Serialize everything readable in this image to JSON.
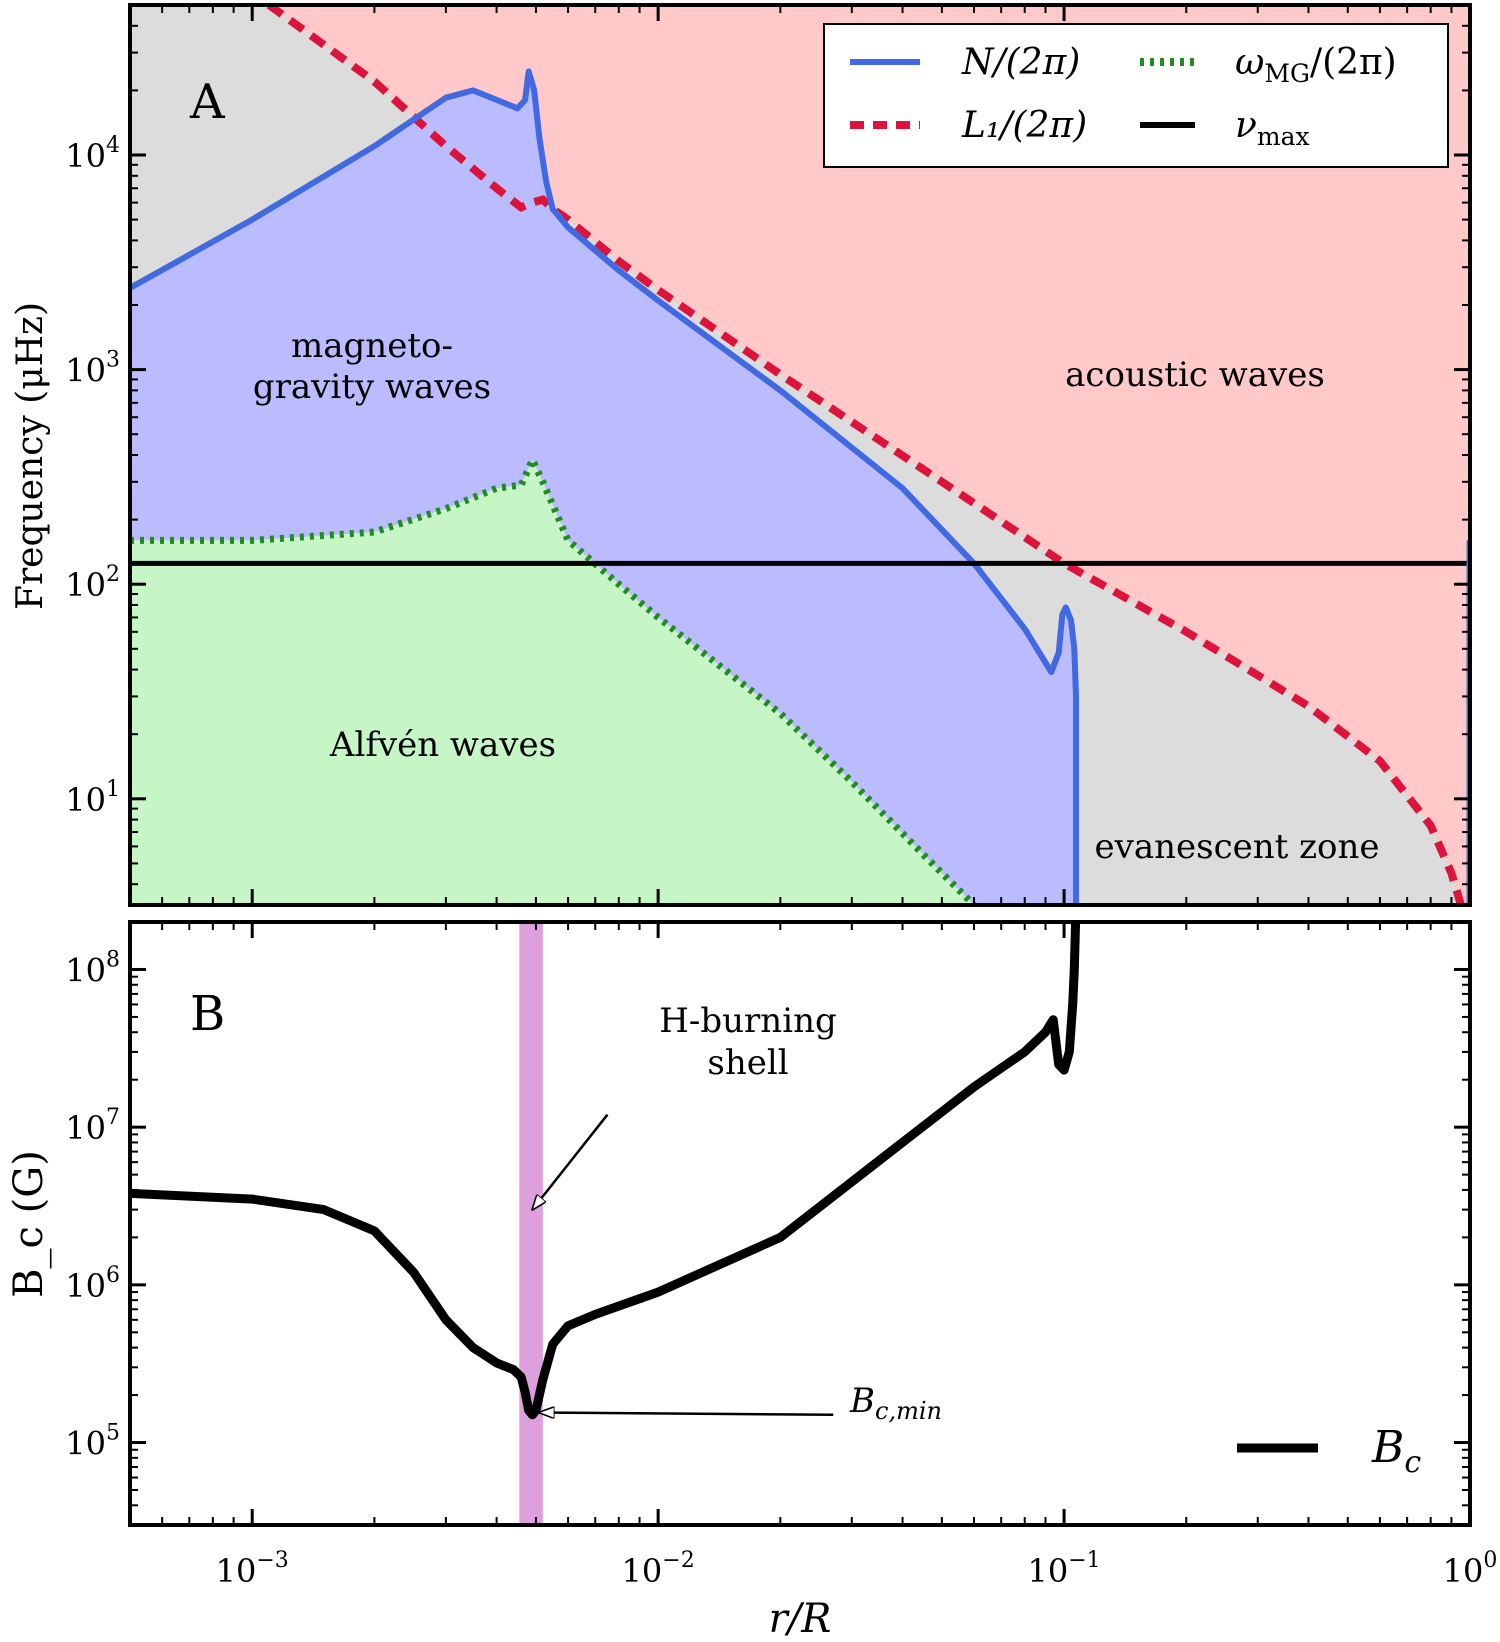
{
  "chart_data": [
    {
      "type": "line",
      "panel_label": "A",
      "ylabel": "Frequency (μHz)",
      "xscale": "log",
      "yscale": "log",
      "xlim": [
        0.0005,
        1.0
      ],
      "ylim": [
        3.2,
        50000
      ],
      "y_ticks": [
        {
          "value": 10,
          "base": "10",
          "exp": "1"
        },
        {
          "value": 100,
          "base": "10",
          "exp": "2"
        },
        {
          "value": 1000,
          "base": "10",
          "exp": "3"
        },
        {
          "value": 10000,
          "base": "10",
          "exp": "4"
        }
      ],
      "legend": {
        "position": "top-right",
        "entries": [
          {
            "key": "N",
            "text": "N/(2π)",
            "color": "#4169E1",
            "style": "solid"
          },
          {
            "key": "omega_mg",
            "text": "ω",
            "sub": "MG",
            "rest": "/(2π)",
            "color": "#228B22",
            "style": "dotted"
          },
          {
            "key": "L1",
            "text": "L₁/(2π)",
            "color": "#DC143C",
            "style": "dashed"
          },
          {
            "key": "numax",
            "text": "ν",
            "sub": "max",
            "color": "#000000",
            "style": "solid"
          }
        ]
      },
      "region_labels": {
        "magneto": [
          "magneto-",
          "gravity waves"
        ],
        "acoustic": "acoustic waves",
        "alfven": "Alfvén waves",
        "evanescent": "evanescent zone"
      },
      "region_colors": {
        "acoustic": "#FFC9C9",
        "magneto": "#BBBBFF",
        "alfven": "#C6F5C6",
        "evanescent": "#DCDCDC"
      },
      "series": [
        {
          "name": "N/(2π)",
          "color": "#4169E1",
          "x": [
            0.0005,
            0.001,
            0.002,
            0.003,
            0.0035,
            0.0045,
            0.0047,
            0.0048,
            0.00495,
            0.0051,
            0.0053,
            0.0055,
            0.006,
            0.008,
            0.01,
            0.02,
            0.04,
            0.06,
            0.08,
            0.093,
            0.097,
            0.099,
            0.101,
            0.104,
            0.106,
            0.107,
            0.107,
            0.107
          ],
          "y": [
            2400,
            5000,
            11000,
            18500,
            20000,
            16500,
            18000,
            24500,
            20000,
            12000,
            7500,
            5600,
            4600,
            2900,
            2100,
            800,
            280,
            125,
            62,
            39,
            48,
            72,
            78,
            68,
            50,
            30,
            10,
            3.2
          ]
        },
        {
          "name": "L₁/(2π)",
          "color": "#DC143C",
          "x": [
            0.0011,
            0.002,
            0.003,
            0.004,
            0.0046,
            0.0049,
            0.0052,
            0.0055,
            0.006,
            0.008,
            0.01,
            0.02,
            0.05,
            0.1,
            0.2,
            0.4,
            0.6,
            0.8,
            0.9,
            0.95
          ],
          "y": [
            50000,
            22000,
            11000,
            7000,
            5700,
            6000,
            6200,
            5600,
            5000,
            3200,
            2350,
            950,
            300,
            125,
            60,
            27,
            15,
            7.5,
            4.5,
            3.2
          ]
        },
        {
          "name": "ω_MG/(2π)",
          "color": "#228B22",
          "x": [
            0.0005,
            0.001,
            0.002,
            0.003,
            0.004,
            0.0046,
            0.0049,
            0.0052,
            0.006,
            0.008,
            0.01,
            0.02,
            0.03,
            0.045,
            0.06
          ],
          "y": [
            160,
            160,
            175,
            225,
            280,
            290,
            380,
            300,
            160,
            100,
            70,
            25,
            12,
            5.5,
            3.2
          ]
        },
        {
          "name": "ν_max",
          "color": "#000000",
          "x": [
            0.0005,
            1.0
          ],
          "y": [
            125,
            125
          ]
        }
      ]
    },
    {
      "type": "line",
      "panel_label": "B",
      "ylabel": "B_c (G)",
      "xlabel": "r/R",
      "xscale": "log",
      "yscale": "log",
      "xlim": [
        0.0005,
        1.0
      ],
      "ylim": [
        30000,
        200000000
      ],
      "x_ticks": [
        {
          "value": 0.001,
          "base": "10",
          "exp": "−3"
        },
        {
          "value": 0.01,
          "base": "10",
          "exp": "−2"
        },
        {
          "value": 0.1,
          "base": "10",
          "exp": "−1"
        },
        {
          "value": 1.0,
          "base": "10",
          "exp": "0"
        }
      ],
      "y_ticks": [
        {
          "value": 100000,
          "base": "10",
          "exp": "5"
        },
        {
          "value": 1000000,
          "base": "10",
          "exp": "6"
        },
        {
          "value": 10000000,
          "base": "10",
          "exp": "7"
        },
        {
          "value": 100000000,
          "base": "10",
          "exp": "8"
        }
      ],
      "shaded_band": {
        "x_range": [
          0.00455,
          0.0052
        ],
        "color": "#DDA0DD"
      },
      "annotations": [
        {
          "key": "hshell",
          "lines": [
            "H-burning",
            "shell"
          ],
          "arrow_from": {
            "x": 0.0075,
            "y": 12000000
          },
          "arrow_to": {
            "x": 0.0049,
            "y": 3000000
          }
        },
        {
          "key": "bcmin",
          "text": "B",
          "sub": "c,min",
          "arrow_from": {
            "x": 0.027,
            "y": 150000
          },
          "arrow_to": {
            "x": 0.0051,
            "y": 155000
          }
        }
      ],
      "legend": {
        "position": "bottom-right",
        "entries": [
          {
            "key": "Bc",
            "text": "B",
            "sub": "c",
            "color": "#000000",
            "style": "solid"
          }
        ]
      },
      "series": [
        {
          "name": "B_c",
          "color": "#000000",
          "x": [
            0.0005,
            0.001,
            0.0015,
            0.002,
            0.0025,
            0.003,
            0.0035,
            0.004,
            0.0044,
            0.0046,
            0.0047,
            0.0048,
            0.0049,
            0.005,
            0.0052,
            0.0055,
            0.006,
            0.007,
            0.01,
            0.02,
            0.04,
            0.06,
            0.08,
            0.09,
            0.094,
            0.097,
            0.1,
            0.103,
            0.105,
            0.106,
            0.107
          ],
          "y": [
            3800000,
            3500000,
            3000000,
            2200000,
            1200000,
            600000,
            400000,
            320000,
            290000,
            260000,
            210000,
            160000,
            150000,
            160000,
            250000,
            420000,
            550000,
            650000,
            900000,
            2000000,
            8000000,
            18000000,
            30000000,
            40000000,
            48000000,
            25000000,
            23000000,
            30000000,
            60000000,
            100000000,
            250000000
          ]
        }
      ]
    }
  ]
}
